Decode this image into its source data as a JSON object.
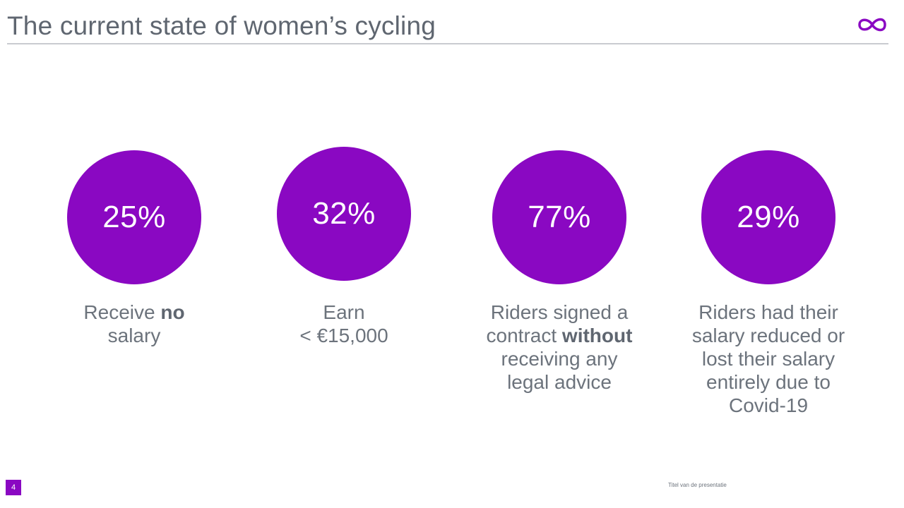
{
  "header": {
    "title": "The current state of women’s cycling"
  },
  "logo": {
    "icon": "infinity-logo-icon",
    "color": "#8a08c2"
  },
  "accent_color": "#8a08c2",
  "stats": [
    {
      "value": "25%",
      "pre": "Receive ",
      "bold": "no",
      "post": "\nsalary"
    },
    {
      "value": "32%",
      "pre": "Earn\n< €15,000",
      "bold": "",
      "post": ""
    },
    {
      "value": "77%",
      "pre": "Riders signed a\ncontract ",
      "bold": "without",
      "post": "\nreceiving any\nlegal advice"
    },
    {
      "value": "29%",
      "pre": "Riders had their\nsalary reduced or\nlost their salary\nentirely due to\nCovid-19",
      "bold": "",
      "post": ""
    }
  ],
  "footer": {
    "page_number": "4",
    "presentation_title": "Titel van de presentatie"
  }
}
